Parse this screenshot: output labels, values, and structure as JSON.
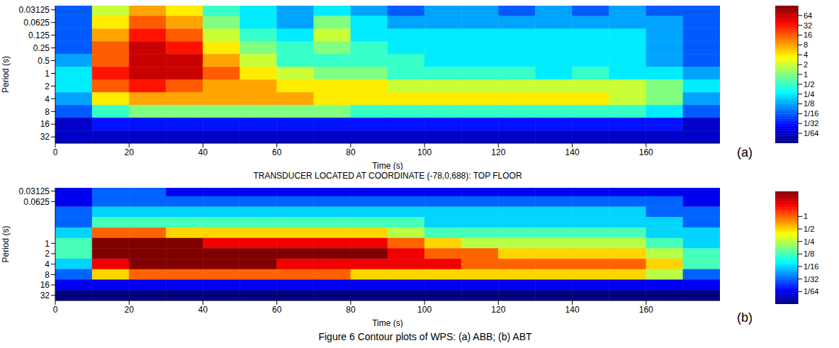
{
  "caption": "Figure 6 Contour plots of WPS: (a) ABB; (b) ABT",
  "chart_data": [
    {
      "type": "heatmap",
      "panel_label": "(a)",
      "x_label": "Time (s)",
      "y_label": "Period (s)",
      "xlim": [
        0,
        180
      ],
      "xticks": [
        0,
        20,
        40,
        60,
        80,
        100,
        120,
        140,
        160
      ],
      "ylim": [
        0.025,
        45
      ],
      "yticks": [
        0.03125,
        0.0625,
        0.125,
        0.25,
        0.5,
        1,
        2,
        4,
        8,
        16,
        32
      ],
      "log": "y",
      "x_edges": [
        0,
        10,
        20,
        30,
        40,
        50,
        60,
        70,
        80,
        90,
        100,
        110,
        120,
        130,
        140,
        150,
        160,
        170,
        180
      ],
      "y_edges": [
        0.025,
        0.0442,
        0.0884,
        0.177,
        0.354,
        0.707,
        1.414,
        2.83,
        5.66,
        11.3,
        22.6,
        45
      ],
      "cells": [
        [
          0.0625,
          2,
          8,
          4,
          0.5,
          0.25,
          0.125,
          0.25,
          0.125,
          0.0625,
          0.125,
          0.125,
          0.0625,
          0.125,
          0.0625,
          0.125,
          0.0625,
          0.0625
        ],
        [
          0.0625,
          4,
          16,
          8,
          1,
          0.25,
          0.125,
          1,
          0.25,
          0.125,
          0.125,
          0.125,
          0.125,
          0.125,
          0.125,
          0.125,
          0.125,
          0.0625
        ],
        [
          0.0625,
          8,
          32,
          16,
          2,
          0.5,
          0.25,
          2,
          0.25,
          0.25,
          0.25,
          0.25,
          0.25,
          0.25,
          0.25,
          0.25,
          0.125,
          0.0625
        ],
        [
          0.0625,
          16,
          64,
          32,
          4,
          1,
          0.5,
          1,
          0.5,
          0.25,
          0.25,
          0.25,
          0.25,
          0.25,
          0.25,
          0.25,
          0.125,
          0.0625
        ],
        [
          0.125,
          16,
          64,
          64,
          8,
          2,
          0.5,
          0.5,
          0.5,
          0.5,
          0.25,
          0.25,
          0.25,
          0.25,
          0.25,
          0.25,
          0.125,
          0.0625
        ],
        [
          0.25,
          32,
          64,
          64,
          16,
          4,
          2,
          1,
          1,
          0.5,
          0.5,
          0.5,
          0.5,
          0.25,
          0.5,
          0.25,
          0.25,
          0.125
        ],
        [
          0.25,
          16,
          32,
          16,
          8,
          8,
          4,
          4,
          4,
          2,
          2,
          2,
          2,
          2,
          2,
          2,
          1,
          0.25
        ],
        [
          0.125,
          4,
          8,
          8,
          8,
          8,
          8,
          4,
          4,
          4,
          4,
          4,
          4,
          4,
          4,
          2,
          1,
          0.125
        ],
        [
          0.0625,
          0.5,
          1,
          1,
          1,
          1,
          1,
          1,
          0.5,
          0.5,
          0.5,
          0.5,
          0.5,
          0.5,
          0.5,
          0.5,
          0.25,
          0.0625
        ],
        [
          0.015625,
          0.03125,
          0.03125,
          0.03125,
          0.03125,
          0.03125,
          0.03125,
          0.03125,
          0.03125,
          0.03125,
          0.03125,
          0.03125,
          0.03125,
          0.03125,
          0.03125,
          0.03125,
          0.03125,
          0.015625
        ],
        [
          0.015625,
          0.015625,
          0.015625,
          0.015625,
          0.015625,
          0.015625,
          0.015625,
          0.015625,
          0.015625,
          0.015625,
          0.015625,
          0.015625,
          0.015625,
          0.015625,
          0.015625,
          0.015625,
          0.015625,
          0.015625
        ]
      ],
      "colorbar": {
        "log": true,
        "range": [
          0.0078125,
          128
        ],
        "ticks": [
          64,
          32,
          16,
          8,
          4,
          2,
          1,
          {
            "value": 0.5,
            "label": "1/2"
          },
          {
            "value": 0.25,
            "label": "1/4"
          },
          {
            "value": 0.125,
            "label": "1/8"
          },
          {
            "value": 0.0625,
            "label": "1/16"
          },
          {
            "value": 0.03125,
            "label": "1/32"
          },
          {
            "value": 0.015625,
            "label": "1/64"
          }
        ]
      }
    },
    {
      "type": "heatmap",
      "panel_label": "(b)",
      "title": "TRANSDUCER LOCATED AT COORDINATE (-78,0,688): TOP FLOOR",
      "x_label": "Time (s)",
      "y_label": "Period (s)",
      "xlim": [
        0,
        180
      ],
      "xticks": [
        0,
        20,
        40,
        60,
        80,
        100,
        120,
        140,
        160
      ],
      "ylim": [
        0.025,
        45
      ],
      "yticks": [
        0.03125,
        0.0625,
        1,
        2,
        4,
        8,
        16,
        32
      ],
      "log": "y",
      "x_edges": [
        0,
        10,
        20,
        30,
        40,
        50,
        60,
        70,
        80,
        90,
        100,
        110,
        120,
        130,
        140,
        150,
        160,
        170,
        180
      ],
      "y_edges": [
        0.025,
        0.0442,
        0.0884,
        0.177,
        0.354,
        0.707,
        1.414,
        2.83,
        5.66,
        11.3,
        22.6,
        45
      ],
      "cells": [
        [
          0.015625,
          0.03125,
          0.03125,
          0.015625,
          0.015625,
          0.015625,
          0.015625,
          0.015625,
          0.015625,
          0.015625,
          0.015625,
          0.015625,
          0.015625,
          0.015625,
          0.015625,
          0.015625,
          0.015625,
          0.015625
        ],
        [
          0.015625,
          0.03125,
          0.03125,
          0.03125,
          0.03125,
          0.03125,
          0.03125,
          0.03125,
          0.03125,
          0.03125,
          0.03125,
          0.03125,
          0.03125,
          0.03125,
          0.03125,
          0.03125,
          0.03125,
          0.015625
        ],
        [
          0.03125,
          0.0625,
          0.0625,
          0.0625,
          0.0625,
          0.0625,
          0.0625,
          0.0625,
          0.0625,
          0.0625,
          0.0625,
          0.0625,
          0.0625,
          0.0625,
          0.0625,
          0.0625,
          0.03125,
          0.03125
        ],
        [
          0.03125,
          0.125,
          0.125,
          0.125,
          0.125,
          0.125,
          0.125,
          0.125,
          0.125,
          0.125,
          0.0625,
          0.0625,
          0.0625,
          0.0625,
          0.0625,
          0.0625,
          0.0625,
          0.03125
        ],
        [
          0.0625,
          1,
          1,
          0.5,
          0.5,
          0.5,
          0.5,
          0.5,
          0.5,
          0.25,
          0.125,
          0.125,
          0.125,
          0.125,
          0.125,
          0.125,
          0.0625,
          0.0625
        ],
        [
          0.125,
          4,
          4,
          4,
          2,
          2,
          2,
          2,
          2,
          1,
          0.5,
          0.25,
          0.25,
          0.25,
          0.25,
          0.25,
          0.125,
          0.0625
        ],
        [
          0.125,
          4,
          4,
          4,
          4,
          4,
          4,
          4,
          4,
          2,
          1,
          1,
          0.5,
          0.5,
          0.5,
          0.5,
          0.25,
          0.125
        ],
        [
          0.0625,
          2,
          4,
          4,
          4,
          4,
          2,
          2,
          2,
          2,
          2,
          1,
          1,
          1,
          1,
          1,
          0.5,
          0.125
        ],
        [
          0.03125,
          0.5,
          1,
          1,
          1,
          1,
          1,
          1,
          0.5,
          0.5,
          0.5,
          0.5,
          0.5,
          0.5,
          0.5,
          0.5,
          0.25,
          0.03125
        ],
        [
          0.015625,
          0.015625,
          0.015625,
          0.015625,
          0.015625,
          0.015625,
          0.015625,
          0.015625,
          0.015625,
          0.015625,
          0.015625,
          0.015625,
          0.015625,
          0.015625,
          0.015625,
          0.015625,
          0.015625,
          0.015625
        ],
        [
          0.0078125,
          0.0078125,
          0.0078125,
          0.0078125,
          0.0078125,
          0.0078125,
          0.0078125,
          0.0078125,
          0.0078125,
          0.0078125,
          0.0078125,
          0.0078125,
          0.0078125,
          0.0078125,
          0.0078125,
          0.0078125,
          0.0078125,
          0.0078125
        ]
      ],
      "colorbar": {
        "log": true,
        "range": [
          0.0078125,
          4
        ],
        "ticks": [
          1,
          {
            "value": 0.5,
            "label": "1/2"
          },
          {
            "value": 0.25,
            "label": "1/4"
          },
          {
            "value": 0.125,
            "label": "1/8"
          },
          {
            "value": 0.0625,
            "label": "1/16"
          },
          {
            "value": 0.03125,
            "label": "1/32"
          },
          {
            "value": 0.015625,
            "label": "1/64"
          }
        ]
      }
    }
  ]
}
